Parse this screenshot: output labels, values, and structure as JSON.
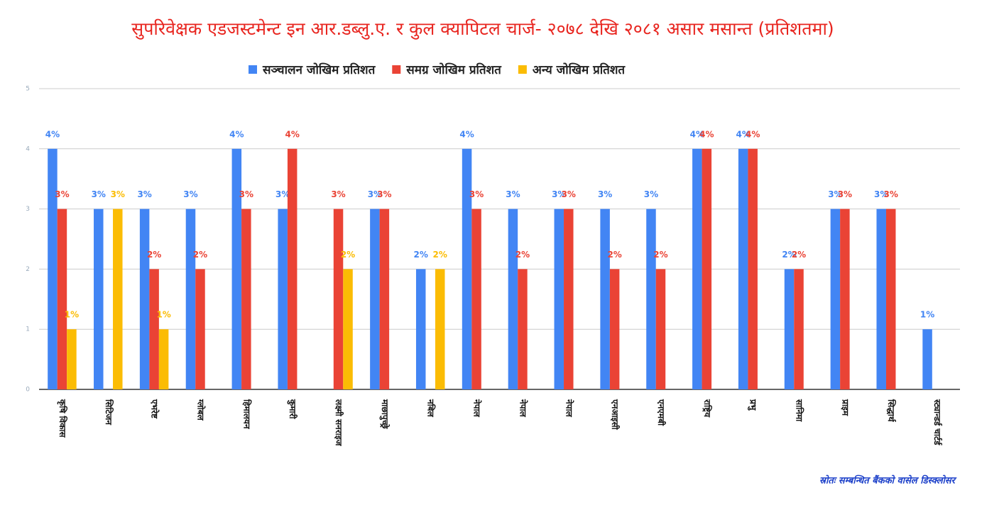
{
  "chart_data": {
    "type": "bar",
    "title": "सुपरिवेक्षक एडजस्टमेन्ट इन आर.डब्लु.ए. र कुल क्यापिटल चार्ज- २०७८ देखि २०८१ असार मसान्त (प्रतिशतमा)",
    "source": "स्रोतः सम्बन्धित बैंकको वासेल डिस्क्लोसर",
    "categories": [
      "कृषि विकास",
      "सिटिजन",
      "एभरेष्ट",
      "ग्लोबल",
      "हिमालयन",
      "कुमारी",
      "लक्ष्मी सनराइज",
      "माछापुच्छ्रे",
      "नबिल",
      "नेपाल",
      "नेपाल",
      "नेपाल",
      "एनआइसी",
      "एनएमबी",
      "राष्ट्रिय",
      "प्रभु",
      "सानिमा",
      "प्राइम",
      "सिद्धार्थ",
      "स्ट्यान्डर्ड चार्टर्ड"
    ],
    "series": [
      {
        "name": "सञ्चालन जोखिम प्रतिशत",
        "color": "#4285f4",
        "values": [
          4,
          3,
          3,
          3,
          4,
          3,
          null,
          3,
          2,
          4,
          3,
          3,
          3,
          3,
          4,
          4,
          2,
          3,
          3,
          1
        ],
        "value_labels": [
          "4%",
          "3%",
          "3%",
          "3%",
          "4%",
          "3%",
          null,
          "3%",
          "2%",
          "4%",
          "3%",
          "3%",
          "3%",
          "3%",
          "4%",
          "4%",
          "2%",
          "3%",
          "3%",
          "1%"
        ]
      },
      {
        "name": "समग्र जोखिम प्रतिशत",
        "color": "#ea4335",
        "values": [
          3,
          null,
          2,
          2,
          3,
          4,
          3,
          3,
          null,
          3,
          2,
          3,
          2,
          2,
          4,
          4,
          2,
          3,
          3,
          null
        ],
        "value_labels": [
          "3%",
          null,
          "2%",
          "2%",
          "3%",
          "4%",
          "3%",
          "3%",
          null,
          "3%",
          "2%",
          "3%",
          "2%",
          "2%",
          "4%",
          "4%",
          "2%",
          "3%",
          "3%",
          null
        ]
      },
      {
        "name": "अन्य जोखिम प्रतिशत",
        "color": "#fbbc04",
        "values": [
          1,
          3,
          1,
          null,
          null,
          null,
          2,
          null,
          2,
          null,
          null,
          null,
          null,
          null,
          null,
          null,
          null,
          null,
          null,
          null
        ],
        "value_labels": [
          "1%",
          "3%",
          "1%",
          null,
          null,
          null,
          "2%",
          null,
          "2%",
          null,
          null,
          null,
          null,
          null,
          null,
          null,
          null,
          null,
          null,
          null
        ]
      }
    ],
    "ylim": [
      0,
      5
    ],
    "yticks": [
      0,
      1,
      2,
      3,
      4,
      5
    ],
    "grid": true,
    "legend": "top"
  }
}
